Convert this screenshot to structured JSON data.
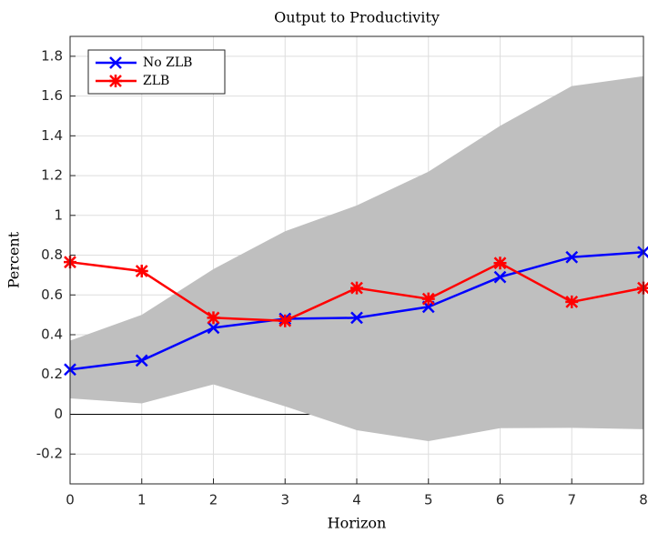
{
  "chart_data": {
    "type": "line",
    "title": "Output to Productivity",
    "x_label": "Horizon",
    "y_label": "Percent",
    "x": [
      0,
      1,
      2,
      3,
      4,
      5,
      6,
      7,
      8
    ],
    "band": {
      "color": "#bfbfbf",
      "upper": [
        0.37,
        0.5,
        0.73,
        0.92,
        1.05,
        1.22,
        1.45,
        1.65,
        1.7
      ],
      "lower": [
        0.08,
        0.055,
        0.15,
        0.04,
        -0.08,
        -0.135,
        -0.07,
        -0.068,
        -0.075
      ]
    },
    "series": [
      {
        "name": "No ZLB",
        "color": "#0000ff",
        "marker": "x",
        "values": [
          0.225,
          0.27,
          0.435,
          0.48,
          0.485,
          0.54,
          0.69,
          0.79,
          0.815
        ]
      },
      {
        "name": "ZLB",
        "color": "#ff0000",
        "marker": "*",
        "values": [
          0.765,
          0.72,
          0.485,
          0.47,
          0.635,
          0.58,
          0.76,
          0.565,
          0.635
        ]
      }
    ],
    "xlim": [
      0,
      8
    ],
    "xticks": [
      0,
      1,
      2,
      3,
      4,
      5,
      6,
      7,
      8
    ],
    "ylim": [
      -0.35,
      1.9
    ],
    "yticks": [
      -0.2,
      0,
      0.2,
      0.4,
      0.6,
      0.8,
      1,
      1.2,
      1.4,
      1.6,
      1.8
    ],
    "grid": true,
    "legend": "upper-left"
  }
}
